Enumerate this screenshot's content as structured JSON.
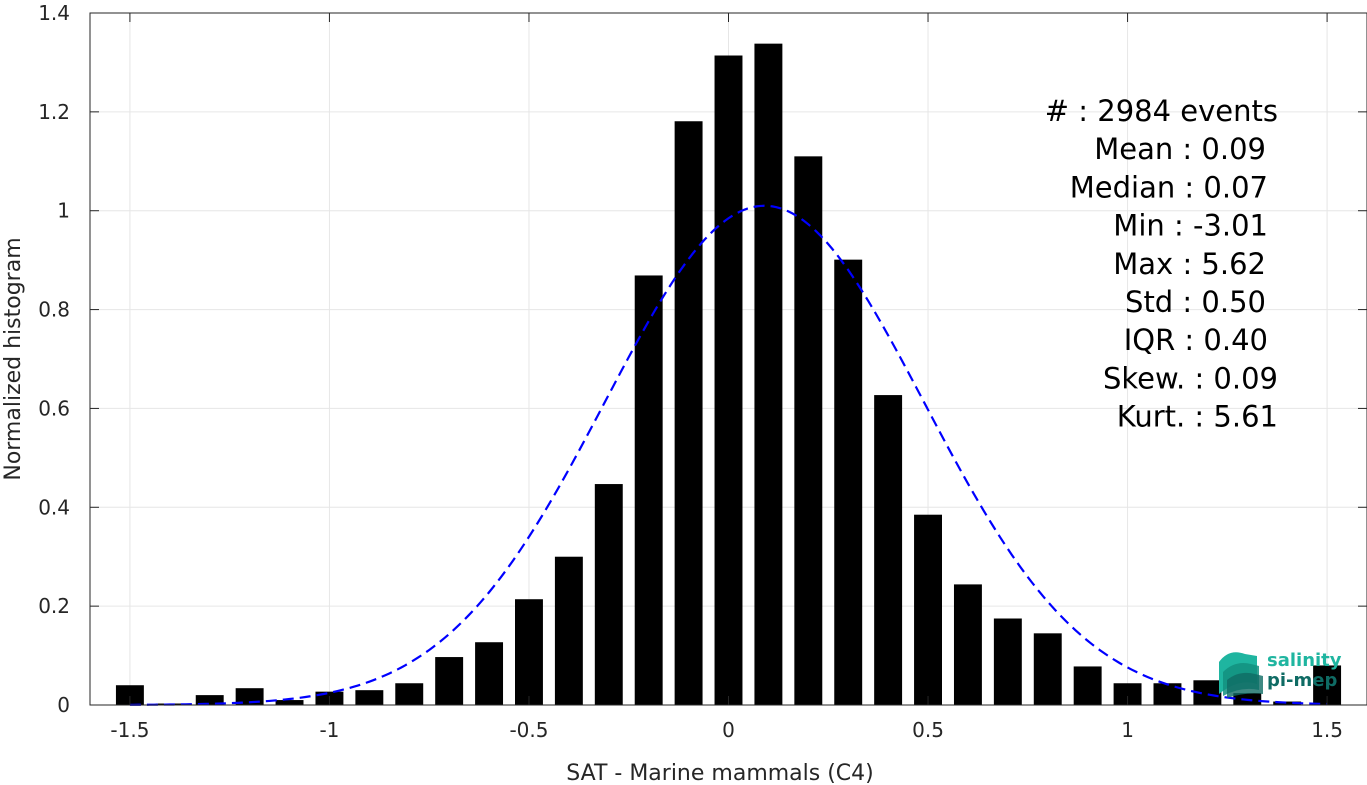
{
  "chart_data": {
    "type": "bar",
    "xlabel": "SAT - Marine mammals (C4)",
    "ylabel": "Normalized histogram",
    "xlim": [
      -1.6,
      1.6
    ],
    "ylim": [
      0,
      1.4
    ],
    "grid": true,
    "x_ticks": [
      -1.5,
      -1,
      -0.5,
      0,
      0.5,
      1,
      1.5
    ],
    "x_tick_labels": [
      "-1.5",
      "-1",
      "-0.5",
      "0",
      "0.5",
      "1",
      "1.5"
    ],
    "y_ticks": [
      0,
      0.2,
      0.4,
      0.6,
      0.8,
      1,
      1.2,
      1.4
    ],
    "y_tick_labels": [
      "0",
      "0.2",
      "0.4",
      "0.6",
      "0.8",
      "1",
      "1.2",
      "1.4"
    ],
    "bin_width": 0.1,
    "bins": [
      {
        "x": -1.5,
        "y": 0.04
      },
      {
        "x": -1.4,
        "y": 0.003
      },
      {
        "x": -1.3,
        "y": 0.02
      },
      {
        "x": -1.2,
        "y": 0.034
      },
      {
        "x": -1.1,
        "y": 0.01
      },
      {
        "x": -1.0,
        "y": 0.027
      },
      {
        "x": -0.9,
        "y": 0.03
      },
      {
        "x": -0.8,
        "y": 0.044
      },
      {
        "x": -0.7,
        "y": 0.097
      },
      {
        "x": -0.6,
        "y": 0.127
      },
      {
        "x": -0.5,
        "y": 0.214
      },
      {
        "x": -0.4,
        "y": 0.3
      },
      {
        "x": -0.3,
        "y": 0.447
      },
      {
        "x": -0.2,
        "y": 0.869
      },
      {
        "x": -0.1,
        "y": 1.181
      },
      {
        "x": 0.0,
        "y": 1.314
      },
      {
        "x": 0.1,
        "y": 1.338
      },
      {
        "x": 0.2,
        "y": 1.11
      },
      {
        "x": 0.3,
        "y": 0.901
      },
      {
        "x": 0.4,
        "y": 0.627
      },
      {
        "x": 0.5,
        "y": 0.385
      },
      {
        "x": 0.6,
        "y": 0.244
      },
      {
        "x": 0.7,
        "y": 0.175
      },
      {
        "x": 0.8,
        "y": 0.145
      },
      {
        "x": 0.9,
        "y": 0.078
      },
      {
        "x": 1.0,
        "y": 0.044
      },
      {
        "x": 1.1,
        "y": 0.044
      },
      {
        "x": 1.2,
        "y": 0.05
      },
      {
        "x": 1.3,
        "y": 0.024
      },
      {
        "x": 1.4,
        "y": 0.007
      },
      {
        "x": 1.5,
        "y": 0.08
      }
    ],
    "fit_curve": {
      "style": "dashed",
      "color": "#0000ff",
      "mean": 0.09,
      "std": 0.4,
      "peak": 1.01
    },
    "bar_color": "#000000",
    "stats": [
      "#  : 2984 events",
      "Mean : 0.09",
      "Median : 0.07",
      "Min : -3.01",
      "Max : 5.62",
      "Std : 0.50",
      "IQR : 0.40",
      "Skew. : 0.09",
      "Kurt. : 5.61"
    ]
  },
  "logo": {
    "line1": "salinity",
    "line2": "pi-mep",
    "color1": "#1fb5a0",
    "color2": "#0f6b64"
  }
}
